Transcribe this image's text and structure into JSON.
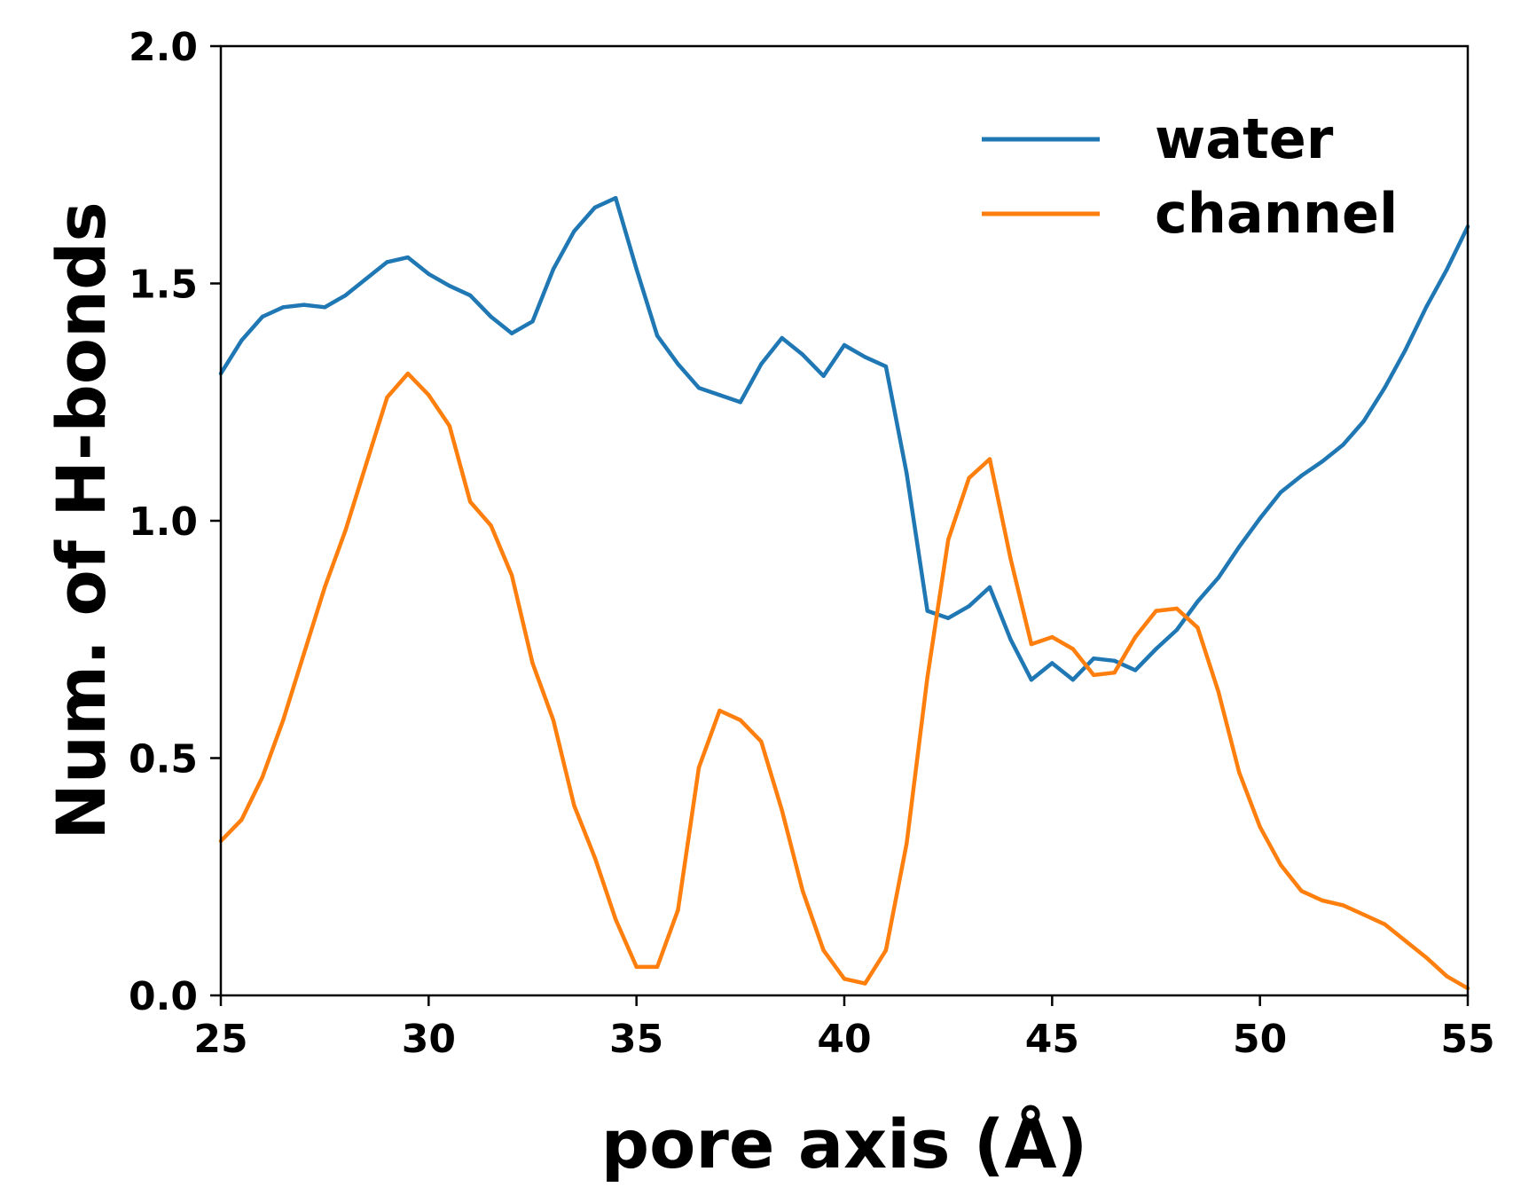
{
  "chart_data": {
    "type": "line",
    "xlabel": "pore axis (Å)",
    "ylabel": "Num. of H-bonds",
    "xlim": [
      25,
      55
    ],
    "ylim": [
      0.0,
      2.0
    ],
    "xticks": [
      "25",
      "30",
      "35",
      "40",
      "45",
      "50",
      "55"
    ],
    "yticks": [
      "0.0",
      "0.5",
      "1.0",
      "1.5",
      "2.0"
    ],
    "legend_position": "top-right",
    "grid": false,
    "x": [
      25,
      25.5,
      26,
      26.5,
      27,
      27.5,
      28,
      28.5,
      29,
      29.5,
      30,
      30.5,
      31,
      31.5,
      32,
      32.5,
      33,
      33.5,
      34,
      34.5,
      35,
      35.5,
      36,
      36.5,
      37,
      37.5,
      38,
      38.5,
      39,
      39.5,
      40,
      40.5,
      41,
      41.5,
      42,
      42.5,
      43,
      43.5,
      44,
      44.5,
      45,
      45.5,
      46,
      46.5,
      47,
      47.5,
      48,
      48.5,
      49,
      49.5,
      50,
      50.5,
      51,
      51.5,
      52,
      52.5,
      53,
      53.5,
      54,
      54.5,
      55
    ],
    "series": [
      {
        "name": "water",
        "color": "#1f77b4",
        "values": [
          1.31,
          1.38,
          1.43,
          1.45,
          1.455,
          1.45,
          1.475,
          1.51,
          1.545,
          1.555,
          1.52,
          1.495,
          1.475,
          1.43,
          1.395,
          1.42,
          1.53,
          1.61,
          1.66,
          1.68,
          1.53,
          1.39,
          1.33,
          1.28,
          1.265,
          1.25,
          1.33,
          1.385,
          1.35,
          1.305,
          1.37,
          1.345,
          1.325,
          1.1,
          0.81,
          0.795,
          0.82,
          0.86,
          0.75,
          0.665,
          0.7,
          0.665,
          0.71,
          0.705,
          0.685,
          0.73,
          0.77,
          0.83,
          0.88,
          0.945,
          1.005,
          1.06,
          1.095,
          1.125,
          1.16,
          1.21,
          1.28,
          1.36,
          1.45,
          1.53,
          1.62
        ]
      },
      {
        "name": "channel",
        "color": "#ff7f0e",
        "values": [
          0.325,
          0.37,
          0.46,
          0.58,
          0.72,
          0.86,
          0.98,
          1.12,
          1.26,
          1.31,
          1.265,
          1.2,
          1.04,
          0.99,
          0.885,
          0.7,
          0.58,
          0.4,
          0.29,
          0.16,
          0.06,
          0.06,
          0.18,
          0.48,
          0.6,
          0.58,
          0.535,
          0.39,
          0.22,
          0.095,
          0.035,
          0.025,
          0.095,
          0.32,
          0.67,
          0.96,
          1.09,
          1.13,
          0.92,
          0.74,
          0.755,
          0.73,
          0.675,
          0.68,
          0.755,
          0.81,
          0.815,
          0.775,
          0.64,
          0.47,
          0.355,
          0.275,
          0.22,
          0.2,
          0.19,
          0.17,
          0.15,
          0.115,
          0.08,
          0.04,
          0.015
        ]
      }
    ]
  }
}
